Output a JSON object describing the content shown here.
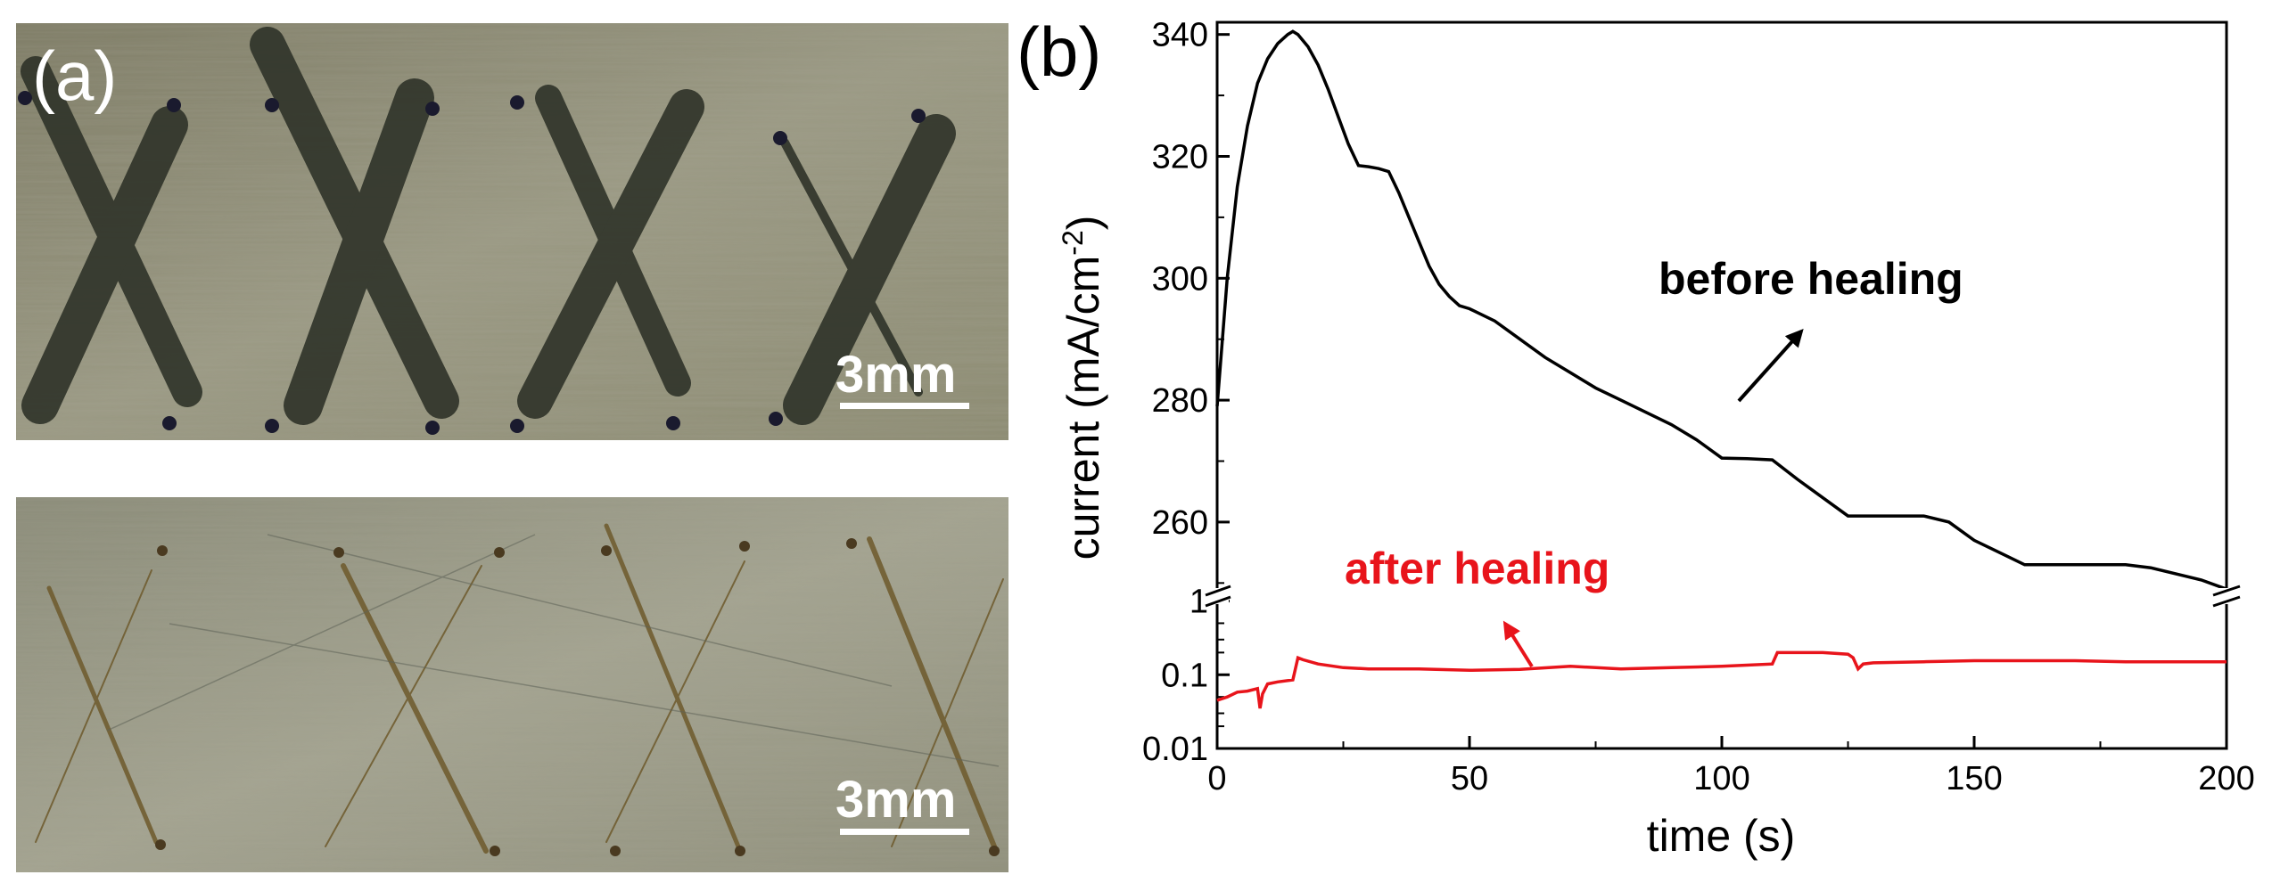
{
  "panel_a": {
    "label": "(a)",
    "top_photo": {
      "scale_bar": "3mm"
    },
    "bottom_photo": {
      "scale_bar": "3mm"
    }
  },
  "panel_b": {
    "label": "(b)"
  },
  "chart_data": {
    "type": "line",
    "title": "",
    "xlabel": "time (s)",
    "ylabel": "current (mA/cm",
    "ylabel_sup": "-2",
    "ylabel_close": ")",
    "xlim": [
      0,
      200
    ],
    "x_ticks": [
      "0",
      "50",
      "100",
      "150",
      "200"
    ],
    "upper_axis": {
      "ylim": [
        248,
        342
      ],
      "ticks": [
        "260",
        "280",
        "300",
        "320",
        "340"
      ]
    },
    "lower_axis": {
      "scale": "log",
      "ylim": [
        0.01,
        1.2
      ],
      "ticks": [
        "0.01",
        "0.1",
        "1"
      ]
    },
    "series": [
      {
        "name": "before healing",
        "color": "#000000",
        "x": [
          0,
          2,
          4,
          6,
          8,
          10,
          12,
          14,
          15,
          16,
          18,
          20,
          22,
          24,
          26,
          28,
          30,
          32,
          34,
          36,
          38,
          40,
          42,
          44,
          46,
          48,
          50,
          55,
          60,
          65,
          70,
          75,
          80,
          85,
          90,
          95,
          100,
          105,
          110,
          115,
          120,
          125,
          130,
          135,
          140,
          145,
          150,
          155,
          160,
          165,
          170,
          175,
          180,
          185,
          190,
          195,
          200
        ],
        "values": [
          279,
          300,
          315,
          325,
          332,
          336,
          338.5,
          340,
          340.5,
          340,
          338,
          335,
          331,
          326.5,
          322,
          318.5,
          318.3,
          318,
          317.5,
          314,
          310,
          306,
          302,
          299,
          297,
          295.5,
          295,
          293,
          290,
          287,
          284.5,
          282,
          280,
          278,
          276,
          273.5,
          270.5,
          270.4,
          270.2,
          267,
          264,
          261,
          261,
          261,
          261,
          260,
          257,
          255,
          253,
          253,
          253,
          253,
          253,
          252.5,
          251.5,
          250.5,
          249
        ]
      },
      {
        "name": "after healing",
        "color": "#e8141b",
        "x": [
          0,
          2,
          4,
          6,
          8,
          8.5,
          9,
          10,
          12,
          15,
          16,
          17,
          20,
          25,
          30,
          40,
          50,
          60,
          70,
          80,
          90,
          100,
          110,
          111,
          115,
          120,
          125,
          126,
          127,
          128,
          130,
          140,
          150,
          160,
          170,
          180,
          190,
          200
        ],
        "values": [
          0.045,
          0.05,
          0.058,
          0.06,
          0.065,
          0.035,
          0.055,
          0.075,
          0.08,
          0.085,
          0.17,
          0.16,
          0.14,
          0.125,
          0.12,
          0.12,
          0.115,
          0.118,
          0.13,
          0.12,
          0.125,
          0.13,
          0.14,
          0.2,
          0.2,
          0.2,
          0.19,
          0.17,
          0.12,
          0.14,
          0.145,
          0.15,
          0.155,
          0.155,
          0.155,
          0.15,
          0.15,
          0.15
        ]
      }
    ],
    "annotations": [
      {
        "text": "before healing",
        "color": "#000000",
        "arrow_to_series": "before healing"
      },
      {
        "text": "after healing",
        "color": "#e8141b",
        "arrow_to_series": "after healing"
      }
    ]
  }
}
